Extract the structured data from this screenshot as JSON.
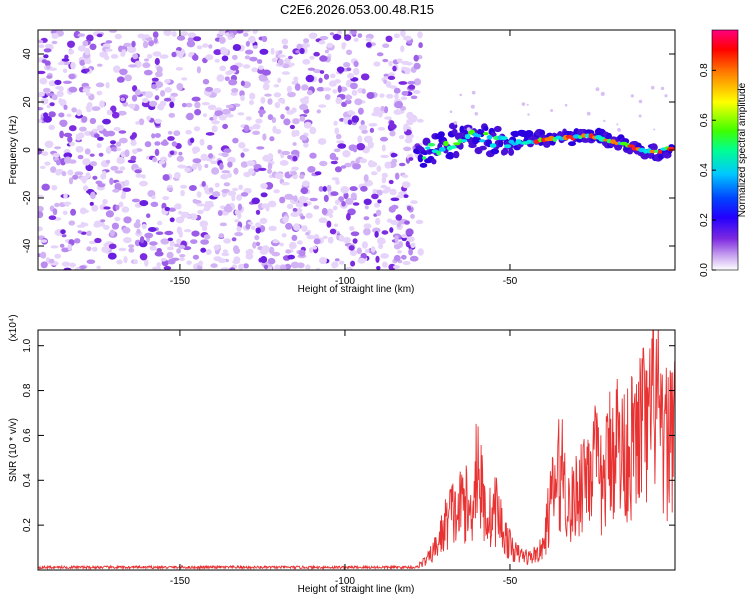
{
  "chart_data": [
    {
      "type": "heatmap",
      "title": "C2E6.2026.053.00.48.R15",
      "xlabel": "Height of straight line (km)",
      "ylabel": "Frequency (Hz)",
      "xlim": [
        -193,
        0
      ],
      "ylim": [
        -50,
        50
      ],
      "x_ticks": [
        -150,
        -100,
        -50
      ],
      "y_ticks": [
        -40,
        -20,
        0,
        20,
        40
      ],
      "colorbar": {
        "label": "Normalized spectral amplitude",
        "range": [
          0,
          1
        ],
        "ticks": [
          "0.0",
          "0.2",
          "0.4",
          "0.6",
          "0.8"
        ],
        "colors": [
          "#ffffff",
          "#c8a2f0",
          "#7d2be0",
          "#2200ff",
          "#0044ff",
          "#00c8ff",
          "#00ff90",
          "#40ff00",
          "#ffff00",
          "#ff8000",
          "#ff0000",
          "#ff0080"
        ]
      },
      "noise_region_x": [
        -193,
        -77
      ],
      "signal_ridge": {
        "x": [
          -78,
          -70,
          -65,
          -60,
          -55,
          -50,
          -45,
          -40,
          -35,
          -30,
          -25,
          -20,
          -15,
          -10,
          -5,
          -1
        ],
        "freq": [
          -2,
          2,
          5,
          6,
          4,
          3,
          3,
          4,
          5,
          5,
          6,
          4,
          2,
          0,
          -1,
          1
        ]
      }
    },
    {
      "type": "line",
      "xlabel": "Height of straight line (km)",
      "ylabel": "SNR (10 * v/v)",
      "scale_label": "(x10⁴)",
      "xlim": [
        -193,
        0
      ],
      "ylim": [
        0,
        1.07
      ],
      "x_ticks": [
        -150,
        -100,
        -50
      ],
      "y_ticks": [
        "0.2",
        "0.4",
        "0.6",
        "0.8",
        "1.0"
      ],
      "series": [
        {
          "name": "SNR",
          "color": "#e83232",
          "x": [
            -193,
            -180,
            -160,
            -140,
            -120,
            -100,
            -85,
            -78,
            -75,
            -72,
            -70,
            -68,
            -66,
            -64,
            -62,
            -60,
            -58,
            -56,
            -54,
            -52,
            -50,
            -48,
            -46,
            -44,
            -42,
            -40,
            -38,
            -36,
            -34,
            -32,
            -30,
            -28,
            -26,
            -24,
            -22,
            -20,
            -18,
            -16,
            -14,
            -12,
            -10,
            -8,
            -6,
            -4,
            -2,
            0
          ],
          "y": [
            0.01,
            0.01,
            0.01,
            0.01,
            0.01,
            0.01,
            0.01,
            0.02,
            0.05,
            0.12,
            0.2,
            0.28,
            0.26,
            0.35,
            0.25,
            0.55,
            0.3,
            0.25,
            0.3,
            0.18,
            0.12,
            0.08,
            0.07,
            0.06,
            0.08,
            0.1,
            0.3,
            0.42,
            0.5,
            0.28,
            0.35,
            0.45,
            0.52,
            0.5,
            0.38,
            0.55,
            0.65,
            0.55,
            0.6,
            0.58,
            0.72,
            0.62,
            0.9,
            0.58,
            0.62,
            0.78
          ]
        }
      ]
    }
  ]
}
